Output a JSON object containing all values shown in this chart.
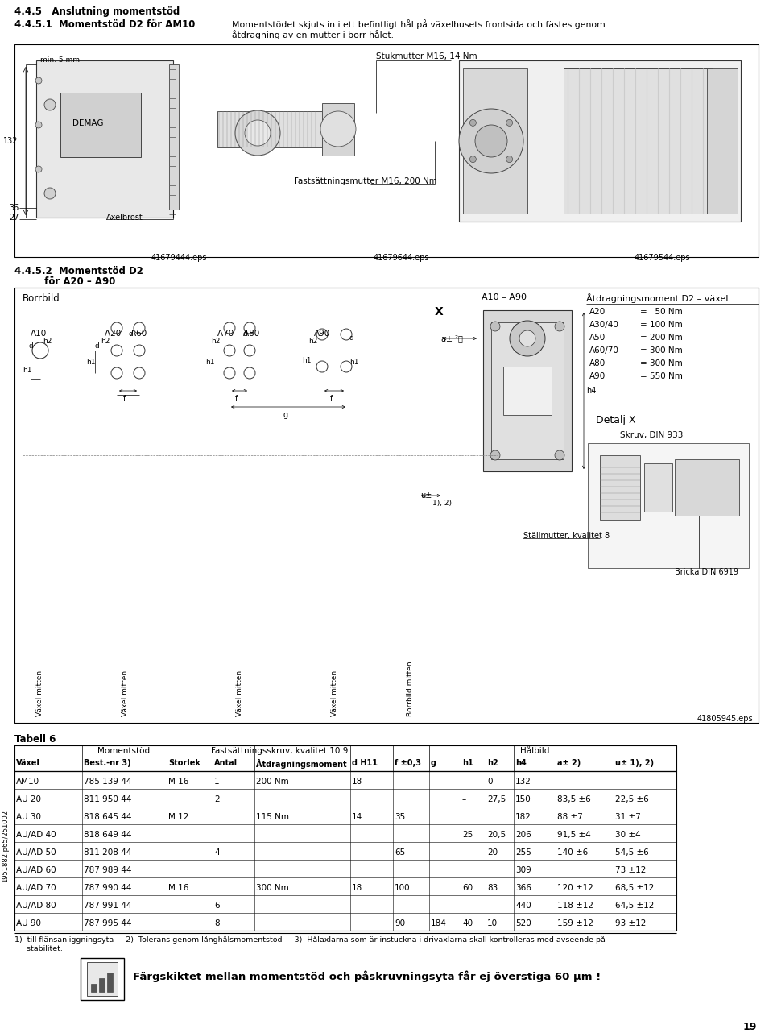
{
  "bg": "#ffffff",
  "sec1": "4.4.5   Anslutning momentstöd",
  "sec2_num": "4.4.5.1  Momentstöd D2 för AM10",
  "sec2_l1": "Momentstödet skjuts in i ett befintligt hål på växelhusets frontsida och fästes genom",
  "sec2_l2": "åtdragning av en mutter i borr hålet.",
  "eps1": "41679444.eps",
  "eps2": "41679644.eps",
  "eps3": "41679544.eps",
  "sec3_l1": "4.4.5.2  Momentstöd D2",
  "sec3_l2": "         för A20 – A90",
  "borrbild": "Borrbild",
  "A10_A90": "A10 – A90",
  "atdrag_hdr": "Åtdragningsmoment D2 – växel",
  "torques": [
    [
      "A20",
      "=   50 Nm"
    ],
    [
      "A30/40",
      "= 100 Nm"
    ],
    [
      "A50",
      "= 200 Nm"
    ],
    [
      "A60/70",
      "= 300 Nm"
    ],
    [
      "A80",
      "= 300 Nm"
    ],
    [
      "A90",
      "= 550 Nm"
    ]
  ],
  "hole_hdrs": [
    "A10",
    "A20 – A60",
    "A70 – A80",
    "A90"
  ],
  "X_lbl": "X",
  "a_lbl": "a± ²⧣",
  "h4_lbl": "h4",
  "u_lbl": "u±",
  "u_lbl2": "1), 2)",
  "f_lbl": "f",
  "g_lbl": "g",
  "d_lbl": "d",
  "h1_lbl": "h1",
  "h2_lbl": "h2",
  "detalj_x": "Detalj X",
  "skruv": "Skruv, DIN 933",
  "stallmutter": "Ställmutter, kvalitet 8",
  "bricka": "Bricka DIN 6919",
  "eps_bot": "41805945.eps",
  "vaxel_mitten": "Växel mitten",
  "borrbild_mitten": "Borrbild mitten",
  "tabell": "Tabell 6",
  "th2": [
    "Växel",
    "Best.-nr 3)",
    "Storlek",
    "Antal",
    "Åtdragningsmoment",
    "d H11",
    "f ±0,3",
    "g",
    "h1",
    "h2",
    "h4",
    "a± 2)",
    "u± 1), 2)"
  ],
  "rows": [
    [
      "AM10",
      "785 139 44",
      "M 16",
      "1",
      "200 Nm",
      "18",
      "–",
      "",
      "–",
      "0",
      "132",
      "–",
      "–"
    ],
    [
      "AU 20",
      "811 950 44",
      "",
      "2",
      "",
      "",
      "",
      "",
      "–",
      "27,5",
      "150",
      "83,5 ±6",
      "22,5 ±6"
    ],
    [
      "AU 30",
      "818 645 44",
      "M 12",
      "",
      "115 Nm",
      "14",
      "35",
      "",
      "",
      "",
      "182",
      "88 ±7",
      "31 ±7"
    ],
    [
      "AU/AD 40",
      "818 649 44",
      "",
      "",
      "",
      "",
      "",
      "",
      "25",
      "20,5",
      "206",
      "91,5 ±4",
      "30 ±4"
    ],
    [
      "AU/AD 50",
      "811 208 44",
      "",
      "4",
      "",
      "",
      "65",
      "",
      "",
      "20",
      "255",
      "140 ±6",
      "54,5 ±6"
    ],
    [
      "AU/AD 60",
      "787 989 44",
      "",
      "",
      "",
      "",
      "",
      "",
      "",
      "",
      "309",
      "",
      "73 ±12"
    ],
    [
      "AU/AD 70",
      "787 990 44",
      "M 16",
      "",
      "300 Nm",
      "18",
      "100",
      "",
      "60",
      "83",
      "366",
      "120 ±12",
      "68,5 ±12"
    ],
    [
      "AU/AD 80",
      "787 991 44",
      "",
      "6",
      "",
      "",
      "",
      "",
      "",
      "",
      "440",
      "118 ±12",
      "64,5 ±12"
    ],
    [
      "AU 90",
      "787 995 44",
      "",
      "8",
      "",
      "",
      "90",
      "184",
      "40",
      "10",
      "520",
      "159 ±12",
      "93 ±12"
    ]
  ],
  "fn1": "1)  till flänsanliggningsyta     2)  Tolerans genom långhålsmomentstod     3)  Hålaxlarna som är instuckna i drivaxlarna skall kontrolleras med avseende på",
  "fn2": "     stabilitet.",
  "bottom_bold": "Färgskiktet mellan momentstöd och påskruvningsyta får ej överstiga 60 μm !",
  "pagenum": "19",
  "sidecode": "1951882.p65/251002",
  "stukmutter": "Stukmutter M16, 14 Nm",
  "fastmutter": "Fastsättningsmutter M16, 200 Nm",
  "min5mm": "min. 5 mm",
  "axelbrost": "Axelbröst",
  "dim132": "132",
  "dim36": "36",
  "dim27": "27"
}
